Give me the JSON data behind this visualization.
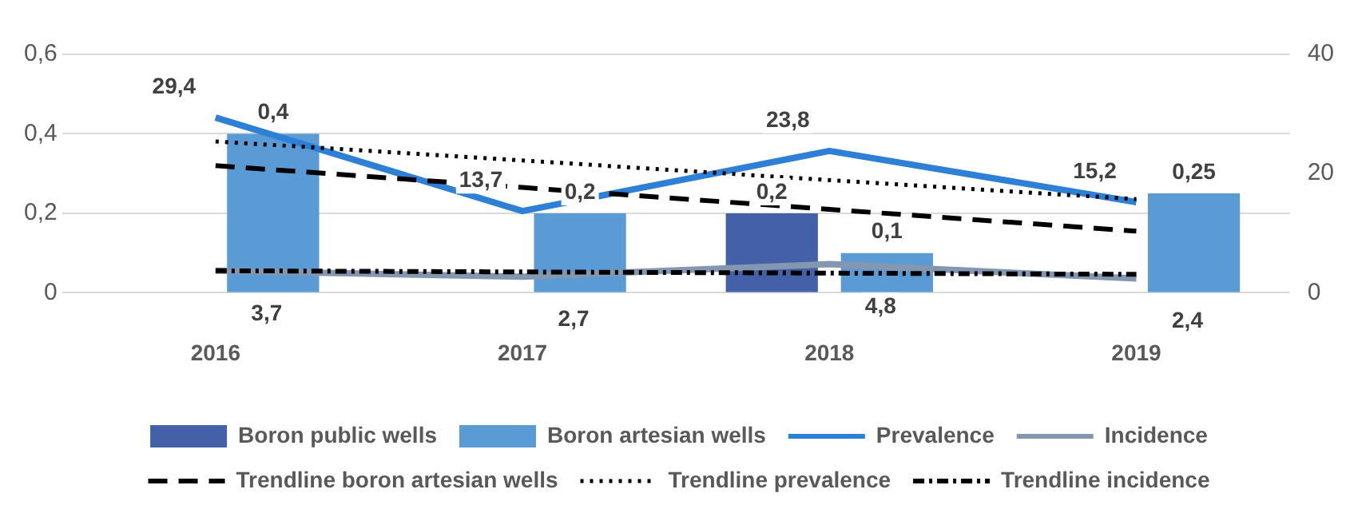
{
  "chart_data": {
    "type": "bar",
    "categories": [
      "2016",
      "2017",
      "2018",
      "2019"
    ],
    "ylim": [
      0,
      0.6
    ],
    "yticks": [
      {
        "value": 0,
        "label": "0"
      },
      {
        "value": 0.2,
        "label": "0,2"
      },
      {
        "value": 0.4,
        "label": "0,4"
      },
      {
        "value": 0.6,
        "label": "0,6"
      }
    ],
    "y2lim": [
      0,
      40
    ],
    "y2ticks": [
      0,
      20,
      40
    ],
    "grid": "y",
    "legend": "bottom",
    "marker": "none",
    "series": [
      {
        "name": "Boron public wells",
        "color": "#4460a8",
        "values": [
          null,
          null,
          0.2,
          null
        ],
        "value_labels": [
          null,
          null,
          "0,2",
          null
        ]
      },
      {
        "name": "Boron artesian wells",
        "color": "#5b9bd5",
        "values": [
          0.4,
          0.2,
          0.1,
          0.25
        ],
        "value_labels": [
          "0,4",
          "0,2",
          "0,1",
          "0,25"
        ]
      },
      {
        "name": "Prevalence",
        "type": "line",
        "axis": "y2",
        "color": "#2e7fd6",
        "values": [
          29.4,
          13.7,
          23.8,
          15.2
        ],
        "value_labels": [
          "29,4",
          "13,7",
          "23,8",
          "15,2"
        ]
      },
      {
        "name": "Incidence",
        "type": "line",
        "axis": "y2",
        "color": "#8497b0",
        "values": [
          3.7,
          2.7,
          4.8,
          2.4
        ],
        "value_labels": [
          "3,7",
          "2,7",
          "4,8",
          "2,4"
        ]
      },
      {
        "name": "Trendline boron artesian wells",
        "type": "line",
        "color": "#000000",
        "line_style": "dashed",
        "values": [
          0.32,
          0.265,
          0.21,
          0.155
        ]
      },
      {
        "name": "Trendline prevalence",
        "type": "line",
        "axis": "y2",
        "color": "#000000",
        "line_style": "dotted",
        "values": [
          25.4,
          22.2,
          18.9,
          15.7
        ]
      },
      {
        "name": "Trendline incidence",
        "type": "line",
        "axis": "y2",
        "color": "#000000",
        "line_style": "dashdot",
        "values": [
          3.7,
          3.5,
          3.3,
          3.1
        ]
      }
    ]
  }
}
